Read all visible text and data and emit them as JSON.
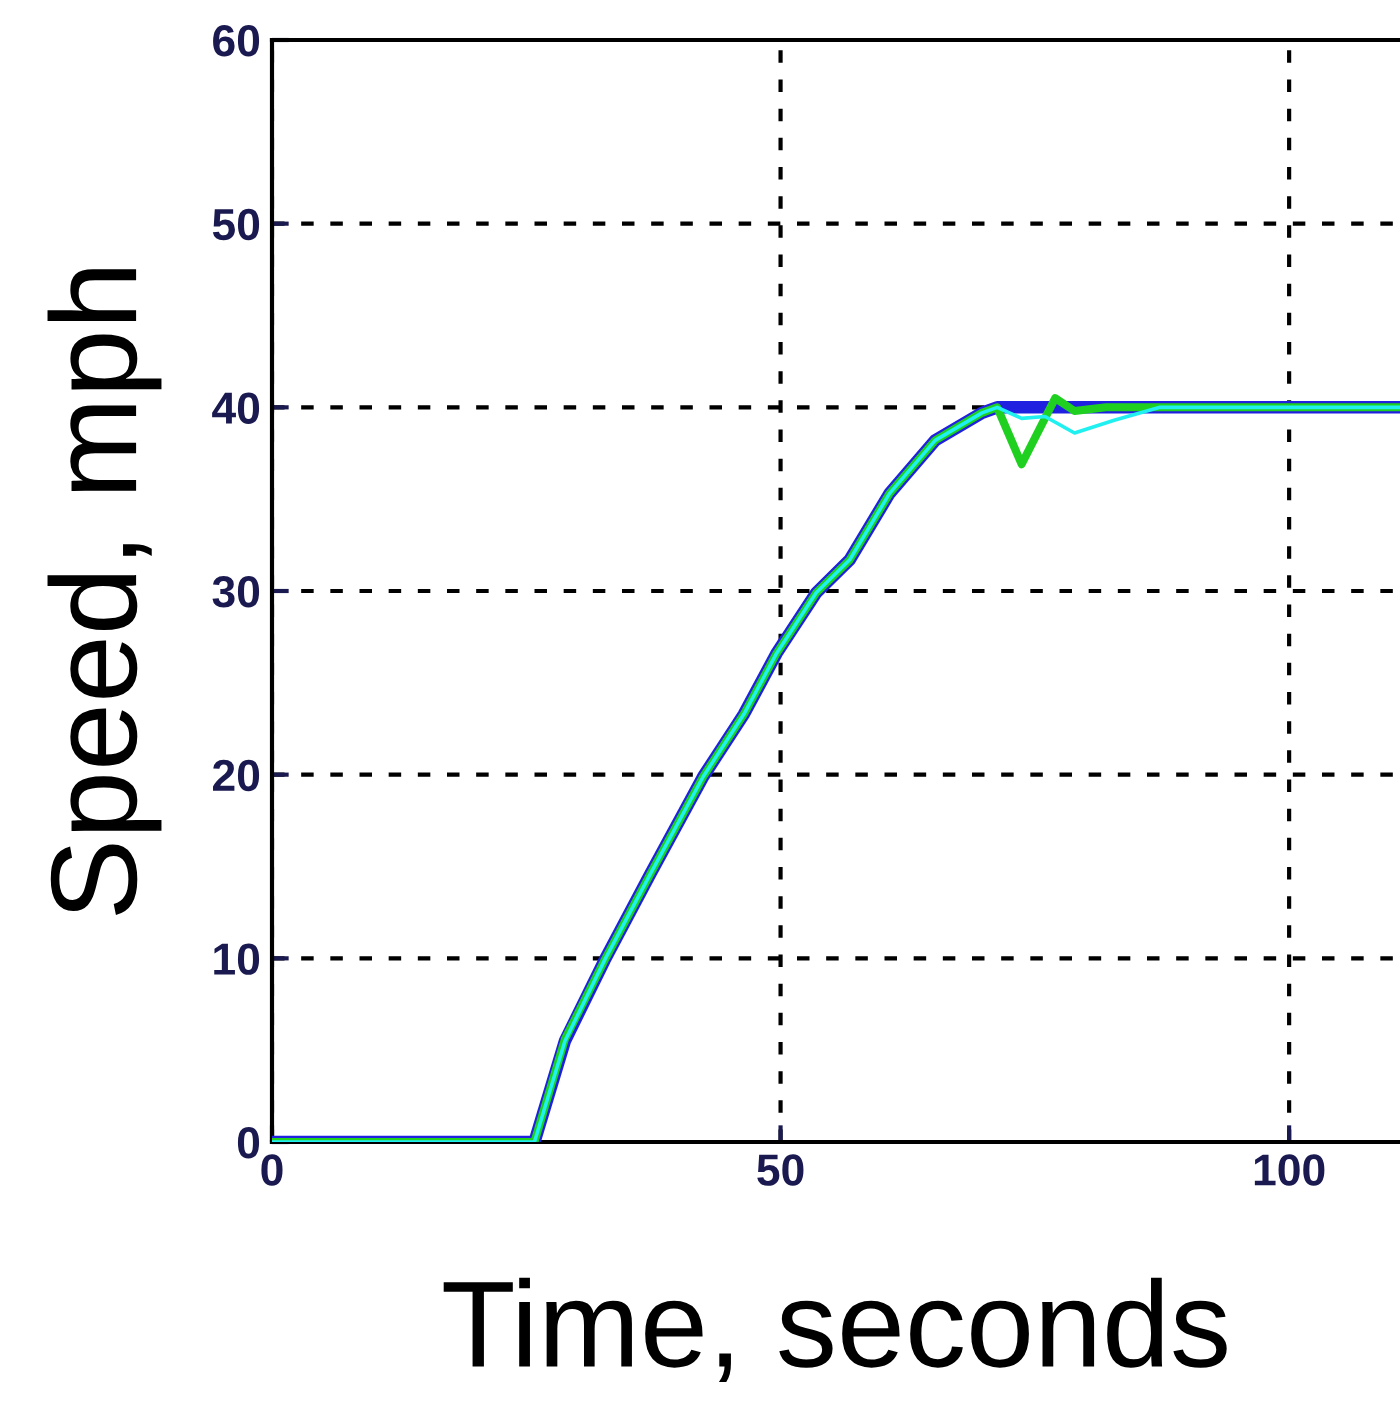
{
  "chart_data": {
    "type": "line",
    "xlabel": "Time, seconds",
    "ylabel": "Speed, mph",
    "xlim": [
      0,
      110.9
    ],
    "ylim": [
      0,
      60
    ],
    "xticks": [
      0,
      50,
      100
    ],
    "yticks": [
      0,
      10,
      20,
      30,
      40,
      50,
      60
    ],
    "grid": true,
    "line_style": "solid",
    "marker": "none",
    "series": [
      {
        "color": "#2020e0",
        "x": [
          0,
          25.8,
          28.8,
          32.7,
          37.2,
          42.4,
          46.4,
          49.6,
          53.5,
          56.8,
          60.7,
          65.2,
          69.8,
          71.3,
          80,
          90,
          100,
          110.9
        ],
        "values": [
          0,
          0,
          5.5,
          9.9,
          14.6,
          19.9,
          23.3,
          26.6,
          29.9,
          31.7,
          35.3,
          38.2,
          39.7,
          40,
          40,
          40,
          40,
          40
        ]
      },
      {
        "color": "#20d020",
        "x": [
          0,
          25.8,
          28.8,
          32.7,
          37.2,
          42.4,
          46.4,
          49.6,
          53.5,
          56.8,
          60.7,
          65.2,
          69.8,
          71.3,
          73.7,
          77,
          78.9,
          82,
          90,
          100,
          110.9
        ],
        "values": [
          0,
          0,
          5.6,
          9.9,
          14.6,
          19.9,
          23.3,
          26.6,
          29.9,
          31.7,
          35.3,
          38.2,
          39.7,
          40,
          36.9,
          40.5,
          39.8,
          40,
          40,
          40,
          40
        ]
      },
      {
        "color": "#20f0f0",
        "x": [
          0,
          25.8,
          28.8,
          32.7,
          37.2,
          42.4,
          46.4,
          49.6,
          53.5,
          56.8,
          60.7,
          65.2,
          69.8,
          71.3,
          73.7,
          76,
          78.9,
          82.8,
          87.3,
          100,
          110.9
        ],
        "values": [
          0,
          0,
          5.5,
          9.9,
          14.6,
          19.9,
          23.3,
          26.6,
          29.9,
          31.7,
          35.3,
          38.2,
          39.7,
          40,
          39.4,
          39.5,
          38.6,
          39.3,
          40,
          40,
          40
        ]
      }
    ]
  }
}
